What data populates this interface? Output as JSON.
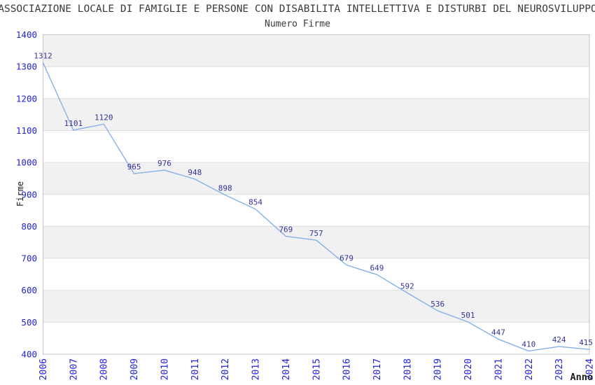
{
  "header": {
    "title": "ASSOCIAZIONE LOCALE DI FAMIGLIE E PERSONE CON DISABILITA INTELLETTIVA E DISTURBI DEL NEUROSVILUPPO",
    "subtitle": "Numero Firme"
  },
  "chart_data": {
    "type": "line",
    "title": "Numero Firme",
    "xlabel": "Anno",
    "ylabel": "Firme",
    "categories": [
      "2006",
      "2007",
      "2008",
      "2009",
      "2010",
      "2011",
      "2012",
      "2013",
      "2014",
      "2015",
      "2016",
      "2017",
      "2018",
      "2019",
      "2020",
      "2021",
      "2022",
      "2023",
      "2024"
    ],
    "series": [
      {
        "name": "Numero Firme",
        "values": [
          1312,
          1101,
          1120,
          965,
          976,
          948,
          898,
          854,
          769,
          757,
          679,
          649,
          592,
          536,
          501,
          447,
          410,
          424,
          415
        ]
      }
    ],
    "ylim": [
      400,
      1400
    ],
    "ytick_step": 100,
    "grid": true,
    "legend": "none",
    "bands_alternating": true,
    "colors": {
      "line": "#85b0e8",
      "tick_labels": "#2222dd",
      "data_labels": "#333399",
      "band_gray": "#f1f1f1",
      "gridline": "#dcdcdc",
      "spine": "#c6c6c6",
      "axis_titles": "#1a1a1a",
      "title_text": "#3a3a3a"
    }
  }
}
